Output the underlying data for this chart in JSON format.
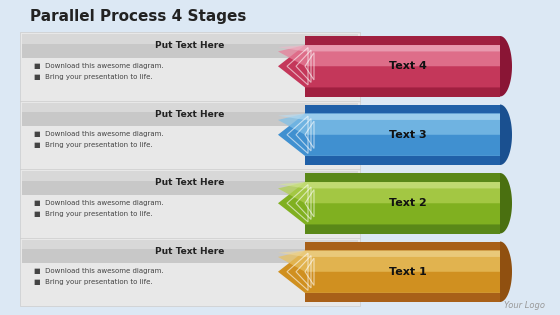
{
  "title": "Parallel Process 4 Stages",
  "title_fontsize": 11,
  "background_color": "#dce8f4",
  "stages": [
    {
      "label": "Text 4",
      "header": "Put Text Here",
      "bullets": [
        "Download this awesome diagram.",
        "Bring your presentation to life."
      ],
      "color_main": "#c4375a",
      "color_light": "#e8809a",
      "color_very_light": "#f0b8c8",
      "color_dark": "#8a1535",
      "color_scroll": "#a02040"
    },
    {
      "label": "Text 3",
      "header": "Put Text Here",
      "bullets": [
        "Download this awesome diagram.",
        "Bring your presentation to life."
      ],
      "color_main": "#4090d0",
      "color_light": "#80c0e8",
      "color_very_light": "#b8ddf4",
      "color_dark": "#1a5090",
      "color_scroll": "#2060a8"
    },
    {
      "label": "Text 2",
      "header": "Put Text Here",
      "bullets": [
        "Download this awesome diagram.",
        "Bring your presentation to life."
      ],
      "color_main": "#80b020",
      "color_light": "#b0d050",
      "color_very_light": "#d4e890",
      "color_dark": "#4a7010",
      "color_scroll": "#5a8818"
    },
    {
      "label": "Text 1",
      "header": "Put Text Here",
      "bullets": [
        "Download this awesome diagram.",
        "Bring your presentation to life."
      ],
      "color_main": "#d09020",
      "color_light": "#e8c060",
      "color_very_light": "#f0d898",
      "color_dark": "#905010",
      "color_scroll": "#a86018"
    }
  ],
  "logo_text": "Your Logo",
  "logo_fontsize": 6
}
